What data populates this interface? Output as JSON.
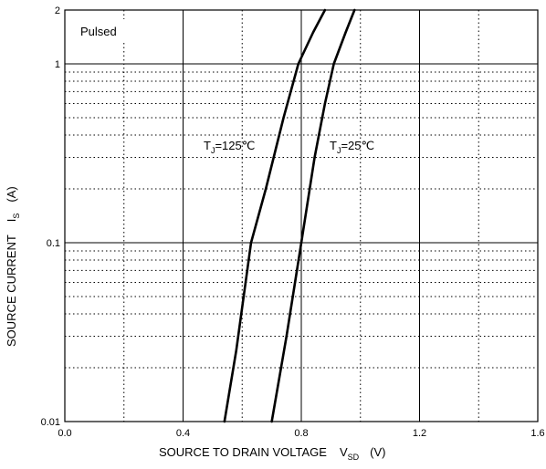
{
  "chart_data": {
    "type": "line",
    "title": "",
    "xlabel": "SOURCE TO DRAIN VOLTAGE",
    "xlabel_symbol": "V",
    "xlabel_subscript": "SD",
    "xlabel_unit": "(V)",
    "ylabel": "SOURCE CURRENT",
    "ylabel_symbol": "I",
    "ylabel_subscript": "S",
    "ylabel_unit": "(A)",
    "xlim": [
      0.0,
      1.6
    ],
    "ylim": [
      0.01,
      2
    ],
    "yscale": "log",
    "x_ticks": [
      0.0,
      0.4,
      0.8,
      1.2,
      1.6
    ],
    "x_tick_labels": [
      "0.0",
      "0.4",
      "0.8",
      "1.2",
      "1.6"
    ],
    "y_ticks": [
      0.01,
      0.1,
      1,
      2
    ],
    "y_tick_labels": [
      "0.01",
      "0.1",
      "1",
      "2"
    ],
    "grid": true,
    "annotation": "Pulsed",
    "series": [
      {
        "name_prefix": "T",
        "name_subscript": "J",
        "name_suffix": "=125℃",
        "x": [
          0.54,
          0.58,
          0.63,
          0.68,
          0.74,
          0.79,
          0.84,
          0.88
        ],
        "y": [
          0.01,
          0.025,
          0.1,
          0.2,
          0.5,
          1.0,
          1.5,
          2.0
        ]
      },
      {
        "name_prefix": "T",
        "name_subscript": "J",
        "name_suffix": "=25℃",
        "x": [
          0.7,
          0.75,
          0.8,
          0.845,
          0.88,
          0.91,
          0.95,
          0.98
        ],
        "y": [
          0.01,
          0.03,
          0.1,
          0.3,
          0.6,
          1.0,
          1.5,
          2.0
        ]
      }
    ]
  }
}
